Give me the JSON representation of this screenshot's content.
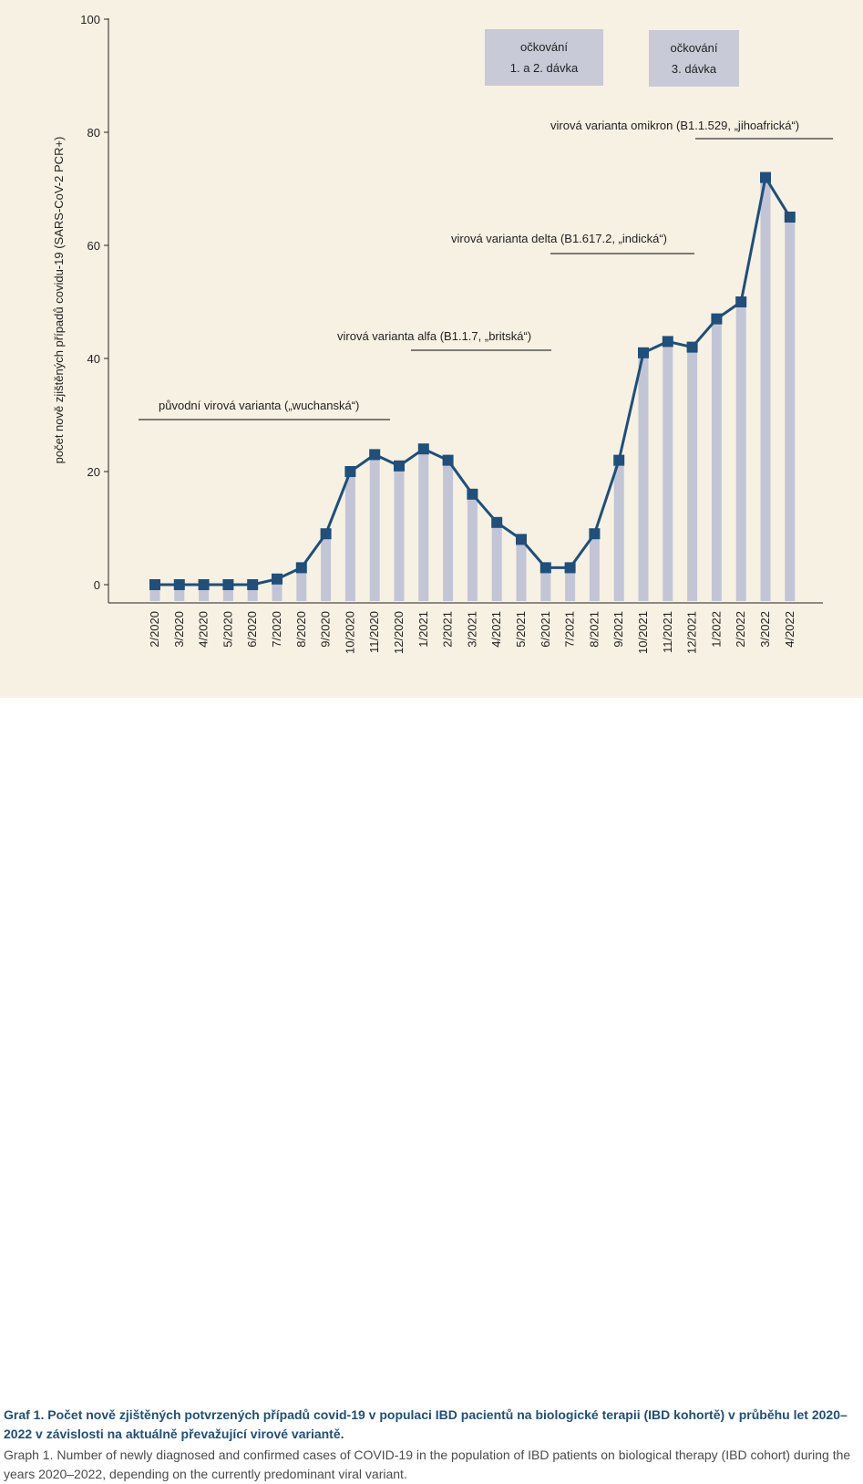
{
  "chart_data": {
    "type": "bar",
    "overlay": "line",
    "ylabel": "počet nově zjištěných případů covidu-19 (SARS-CoV-2 PCR+)",
    "xlabel": "",
    "ylim": [
      0,
      100
    ],
    "yticks": [
      0,
      20,
      40,
      60,
      80,
      100
    ],
    "categories": [
      "2/2020",
      "3/2020",
      "4/2020",
      "5/2020",
      "6/2020",
      "7/2020",
      "8/2020",
      "9/2020",
      "10/2020",
      "11/2020",
      "12/2020",
      "1/2021",
      "2/2021",
      "3/2021",
      "4/2021",
      "5/2021",
      "6/2021",
      "7/2021",
      "8/2021",
      "9/2021",
      "10/2021",
      "11/2021",
      "12/2021",
      "1/2022",
      "2/2022",
      "3/2022",
      "4/2022"
    ],
    "values": [
      0,
      0,
      0,
      0,
      0,
      1,
      3,
      9,
      20,
      23,
      21,
      24,
      22,
      16,
      11,
      8,
      3,
      3,
      9,
      22,
      41,
      43,
      42,
      47,
      50,
      72,
      65
    ],
    "variants": [
      {
        "label": "původní virová varianta („wuchanská“)",
        "from": "2/2020",
        "to": "12/2020"
      },
      {
        "label": "virová varianta alfa (B1.1.7, „britská“)",
        "from": "1/2021",
        "to": "6/2021"
      },
      {
        "label": "virová varianta delta (B1.617.2, „indická“)",
        "from": "6/2021",
        "to": "12/2021"
      },
      {
        "label": "virová varianta omikron (B1.1.529, „jihoafrická“)",
        "from": "12/2021",
        "to": "4/2022"
      }
    ],
    "vaccinations": [
      {
        "line1": "očkování",
        "line2": "1. a 2. dávka"
      },
      {
        "line1": "očkování",
        "line2": "3. dávka"
      }
    ],
    "colors": {
      "bar": "#c2c5d6",
      "line": "#1f4f7a",
      "marker": "#1f4f7a",
      "vacc_box": "#c8cad7",
      "background": "#f7f1e3",
      "axis": "#222222"
    },
    "grid": false
  },
  "caption": {
    "cz": "Graf 1. Počet nově zjištěných potvrzených případů covid-19 v populaci IBD pacientů na biologické terapii (IBD kohortě) v průběhu let 2020–2022 v závislosti na aktuálně převažující virové variantě.",
    "en": "Graph 1. Number of newly diagnosed and confirmed cases of COVID-19 in the population of IBD patients on biological therapy (IBD cohort) during the years 2020–2022, depending on the currently predominant viral variant."
  }
}
